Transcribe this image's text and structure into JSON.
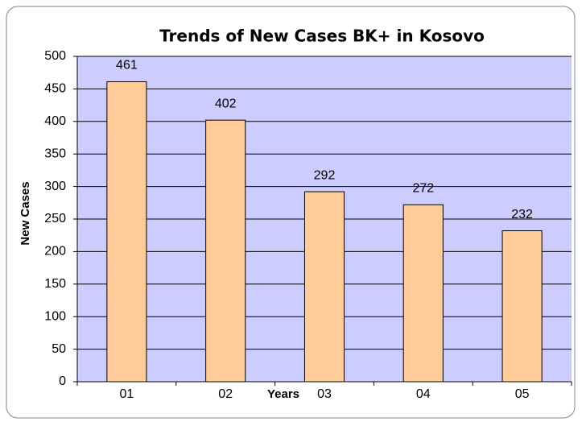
{
  "chart_data": {
    "type": "bar",
    "title": "Trends of New Cases BK+ in Kosovo",
    "x_label": "Years",
    "y_label": "New Cases",
    "categories": [
      "01",
      "02",
      "03",
      "04",
      "05"
    ],
    "values": [
      461,
      402,
      292,
      272,
      232
    ],
    "color": "#ffcc99",
    "background": "#ccccff",
    "ylim": [
      0,
      500
    ],
    "yticks": [
      0,
      50,
      100,
      150,
      200,
      250,
      300,
      350,
      400,
      450,
      500
    ],
    "grid": true
  }
}
